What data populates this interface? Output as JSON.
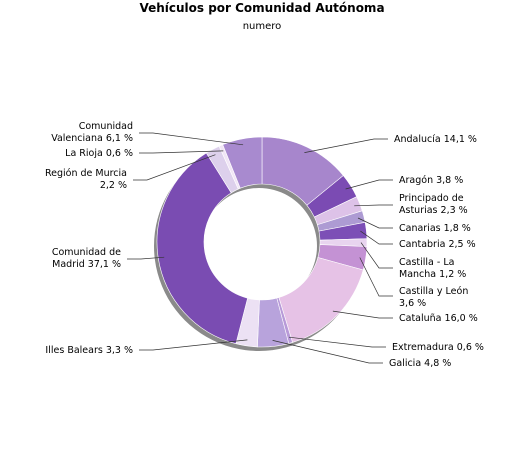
{
  "chart_data": {
    "type": "pie",
    "variant": "donut",
    "title": "Vehículos por Comunidad Autónoma",
    "subtitle": "numero",
    "slices": [
      {
        "name": "Andalucía",
        "value": 14.1,
        "label": [
          "Andalucía 14,1 %"
        ],
        "color": "#a786cc"
      },
      {
        "name": "Aragón",
        "value": 3.8,
        "label": [
          "Aragón 3,8 %"
        ],
        "color": "#7b4bb3"
      },
      {
        "name": "Principado de Asturias",
        "value": 2.3,
        "label": [
          "Principado de",
          "Asturias 2,3 %"
        ],
        "color": "#ddc2e8"
      },
      {
        "name": "Canarias",
        "value": 1.8,
        "label": [
          "Canarias 1,8 %"
        ],
        "color": "#ad9bd3"
      },
      {
        "name": "Cantabria",
        "value": 2.5,
        "label": [
          "Cantabria 2,5 %"
        ],
        "color": "#7c4fb6"
      },
      {
        "name": "Castilla - La Mancha",
        "value": 1.2,
        "label": [
          "Castilla - La",
          "Mancha 1,2 %"
        ],
        "color": "#e8d4ef"
      },
      {
        "name": "Castilla y León",
        "value": 3.6,
        "label": [
          "Castilla y León",
          "3,6 %"
        ],
        "color": "#c492d4"
      },
      {
        "name": "Cataluña",
        "value": 16.0,
        "label": [
          "Cataluña 16,0 %"
        ],
        "color": "#e6c2e6"
      },
      {
        "name": "Extremadura",
        "value": 0.6,
        "label": [
          "Extremadura 0,6 %"
        ],
        "color": "#b89ad8"
      },
      {
        "name": "Galicia",
        "value": 4.8,
        "label": [
          "Galicia 4,8 %"
        ],
        "color": "#b8a3dc"
      },
      {
        "name": "Illes Balears",
        "value": 3.3,
        "label": [
          "Illes Balears 3,3 %"
        ],
        "color": "#ece1f4"
      },
      {
        "name": "Comunidad de Madrid",
        "value": 37.1,
        "label": [
          "Comunidad de",
          "Madrid 37,1 %"
        ],
        "color": "#7a4cb2"
      },
      {
        "name": "Región de Murcia",
        "value": 2.2,
        "label": [
          "Región de Murcia",
          "2,2 %"
        ],
        "color": "#ddd0ec"
      },
      {
        "name": "La Rioja",
        "value": 0.6,
        "label": [
          "La Rioja 0,6 %"
        ],
        "color": "#f1e6f6"
      },
      {
        "name": "Comunidad Valenciana",
        "value": 6.1,
        "label": [
          "Comunidad",
          "Valenciana 6,1 %"
        ],
        "color": "#a88acf"
      }
    ]
  }
}
